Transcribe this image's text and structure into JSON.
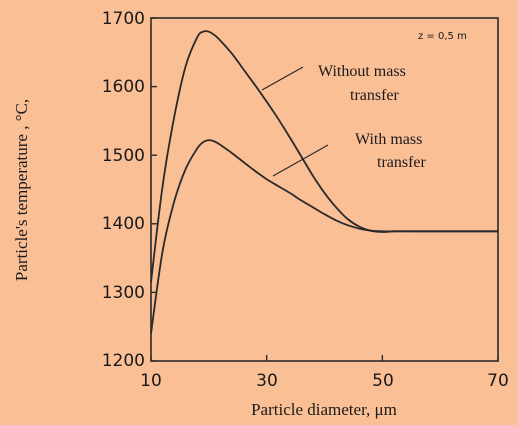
{
  "chart_data": {
    "type": "line",
    "xlabel": "Particle diameter, μm",
    "ylabel": "Particle's temperature , °C,",
    "xlim": [
      10,
      70
    ],
    "ylim": [
      1200,
      1700
    ],
    "x_ticks": [
      "10",
      "30",
      "50",
      "70"
    ],
    "y_ticks": [
      "1200",
      "1300",
      "1400",
      "1500",
      "1600",
      "1700"
    ],
    "grid": false,
    "annotation_z": "z = 0,5 m",
    "series": [
      {
        "name": "Without mass transfer",
        "label_lines": [
          "Without mass",
          "transfer"
        ],
        "x": [
          10,
          12,
          14,
          16,
          18,
          19,
          20,
          21,
          22,
          24,
          26,
          28,
          30,
          32,
          34,
          36,
          38,
          40,
          42,
          44,
          46,
          48,
          50,
          52,
          55,
          60,
          65,
          70
        ],
        "values": [
          1315,
          1455,
          1555,
          1630,
          1672,
          1680,
          1680,
          1675,
          1667,
          1648,
          1625,
          1602,
          1578,
          1553,
          1526,
          1498,
          1470,
          1445,
          1424,
          1407,
          1396,
          1390,
          1388,
          1389,
          1389,
          1389,
          1389,
          1389
        ]
      },
      {
        "name": "With mass transfer",
        "label_lines": [
          "With mass",
          "transfer"
        ],
        "x": [
          10,
          12,
          14,
          16,
          18,
          19,
          20,
          21,
          22,
          24,
          26,
          28,
          30,
          32,
          34,
          36,
          38,
          40,
          42,
          44,
          46,
          48,
          50,
          52,
          55,
          60,
          65,
          70
        ],
        "values": [
          1240,
          1360,
          1432,
          1480,
          1510,
          1519,
          1522,
          1520,
          1515,
          1503,
          1490,
          1477,
          1465,
          1455,
          1445,
          1434,
          1424,
          1414,
          1405,
          1398,
          1393,
          1390,
          1389,
          1389,
          1389,
          1389,
          1389,
          1389
        ]
      }
    ]
  },
  "colors": {
    "background": "#fbbf96",
    "line": "#2a2a2a"
  }
}
